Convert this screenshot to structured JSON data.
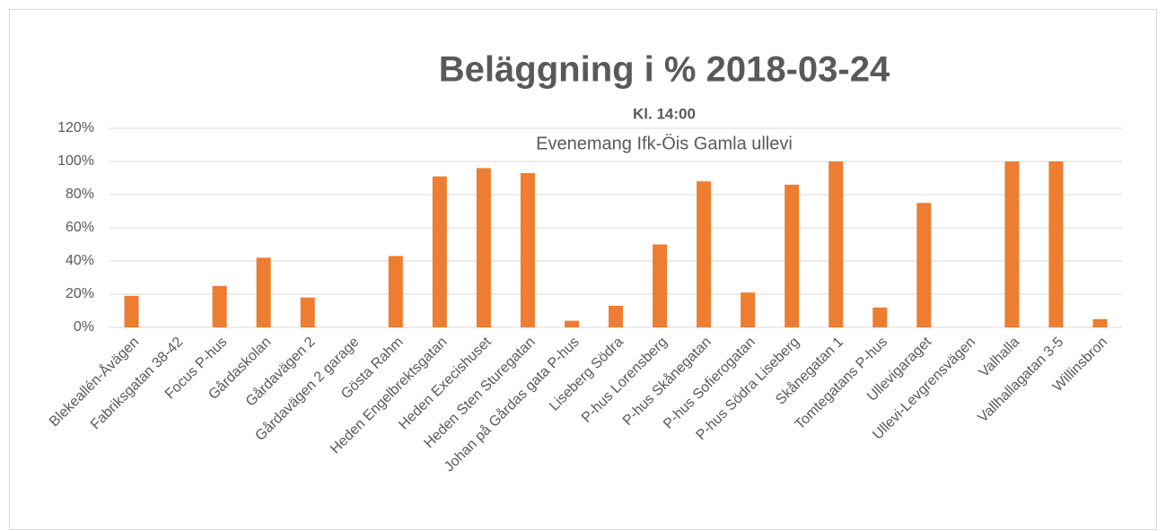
{
  "chart_data": {
    "type": "bar",
    "title": "Beläggning i % 2018-03-24",
    "subtitle": "Kl. 14:00",
    "annotation": "Evenemang Ifk-Öis Gamla ullevi",
    "categories": [
      "Blekeallén-Åvägen",
      "Fabriksgatan 38-42",
      "Focus P-hus",
      "Gårdaskolan",
      "Gårdavägen 2",
      "Gårdavägen 2 garage",
      "Gösta Rahm",
      "Heden Engelbrektsgatan",
      "Heden Execishuset",
      "Heden Sten Sturegatan",
      "Johan på Gårdas gata P-hus",
      "Liseberg Södra",
      "P-hus Lorensberg",
      "P-hus Skånegatan",
      "P-hus Sofierogatan",
      "P-hus Södra Liseberg",
      "Skånegatan 1",
      "Tomtegatans P-hus",
      "Ullevigaraget",
      "Ullevi-Levgrensvägen",
      "Valhalla",
      "Vallhallagatan 3-5",
      "Willinsbron"
    ],
    "values": [
      19,
      0,
      25,
      42,
      18,
      0,
      43,
      91,
      96,
      93,
      4,
      13,
      50,
      88,
      21,
      86,
      100,
      12,
      75,
      0,
      100,
      100,
      5
    ],
    "color": "#ed7d31",
    "ylim": [
      0,
      120
    ],
    "yticks": [
      {
        "value": 0,
        "label": "0%"
      },
      {
        "value": 20,
        "label": "20%"
      },
      {
        "value": 40,
        "label": "40%"
      },
      {
        "value": 60,
        "label": "60%"
      },
      {
        "value": 80,
        "label": "80%"
      },
      {
        "value": 100,
        "label": "100%"
      },
      {
        "value": 120,
        "label": "120%"
      }
    ],
    "grid": true
  }
}
